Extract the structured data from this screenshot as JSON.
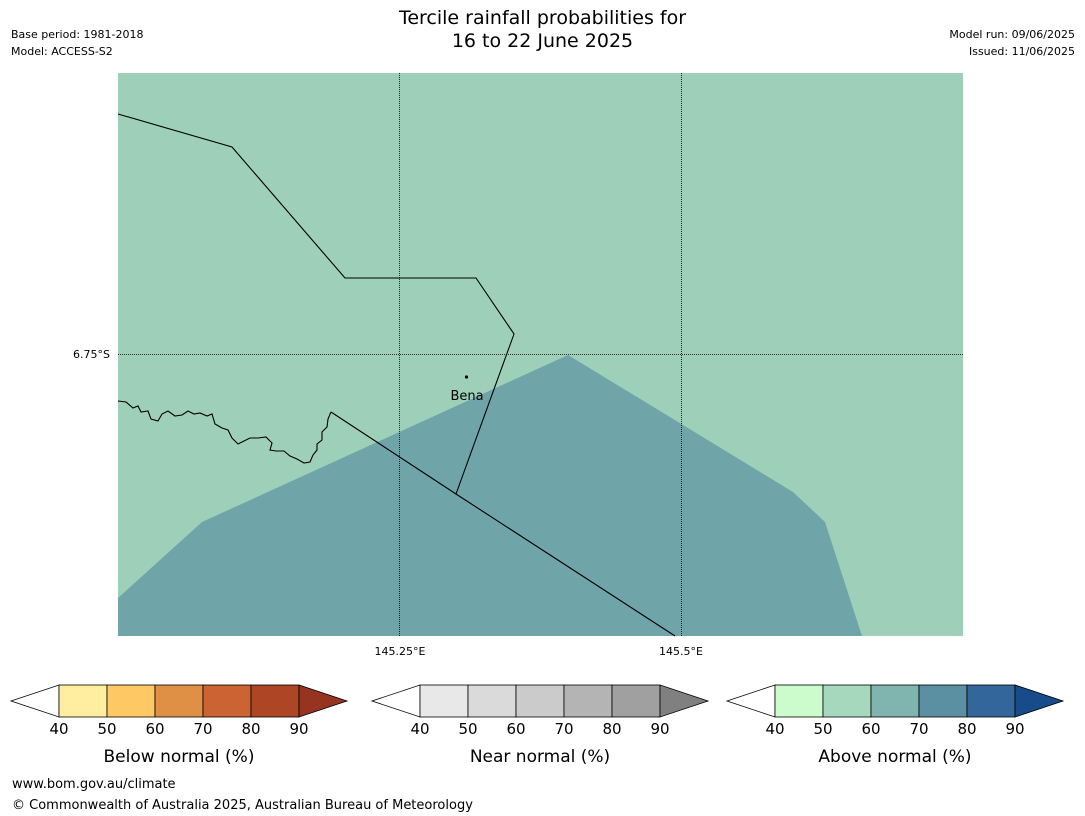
{
  "header": {
    "title_line1": "Tercile rainfall probabilities for",
    "title_line2": "16 to 22 June 2025",
    "base_period": "Base period: 1981-2018",
    "model": "Model: ACCESS-S2",
    "model_run": "Model run: 09/06/2025",
    "issued": "Issued: 11/06/2025"
  },
  "map": {
    "gridlines": {
      "lat_label": "6.75°S",
      "lon_labels": [
        "145.25°E",
        "145.5°E"
      ]
    },
    "town": {
      "name": "Bena"
    },
    "colors": {
      "category_above_50_60": "#9ed0b9",
      "category_above_60_70": "#6fa5a8",
      "border_line": "#000000"
    }
  },
  "colorbars": [
    {
      "title": "Below normal (%)",
      "ticks": [
        "40",
        "50",
        "60",
        "70",
        "80",
        "90"
      ],
      "colors": [
        "#ffffff",
        "#ffeda0",
        "#fec965",
        "#e09044",
        "#cb6332",
        "#ae4626",
        "#963421"
      ]
    },
    {
      "title": "Near normal (%)",
      "ticks": [
        "40",
        "50",
        "60",
        "70",
        "80",
        "90"
      ],
      "colors": [
        "#ffffff",
        "#e8e8e8",
        "#dadada",
        "#cbcbcb",
        "#b4b4b4",
        "#a0a0a0",
        "#808080"
      ]
    },
    {
      "title": "Above normal (%)",
      "ticks": [
        "40",
        "50",
        "60",
        "70",
        "80",
        "90"
      ],
      "colors": [
        "#ffffff",
        "#ccfccc",
        "#a6d8be",
        "#80b4ae",
        "#5a90a2",
        "#33669a",
        "#174b8a"
      ]
    }
  ],
  "footer": {
    "url": "www.bom.gov.au/climate",
    "copyright": "© Commonwealth of Australia 2025, Australian Bureau of Meteorology"
  }
}
